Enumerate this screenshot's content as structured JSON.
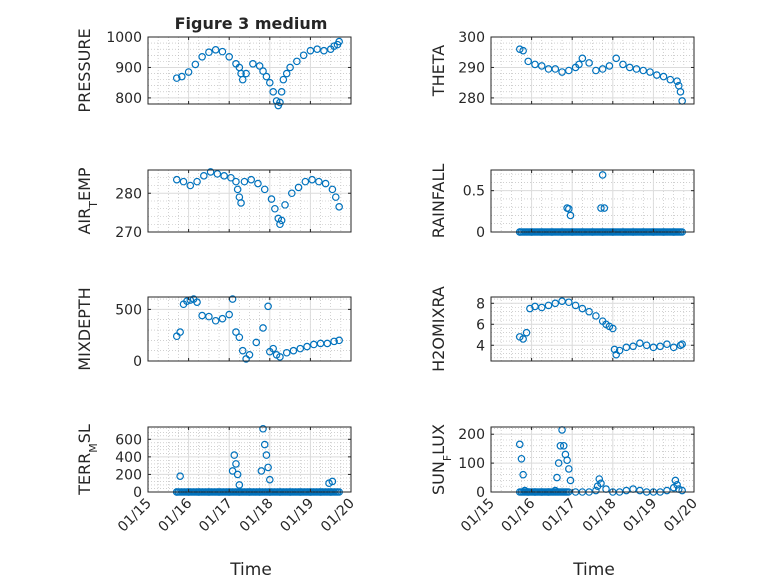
{
  "title": "Figure 3 medium",
  "xlabel": "Time",
  "x_ticks": [
    "01/15",
    "01/16",
    "01/17",
    "01/18",
    "01/19",
    "01/20"
  ],
  "colors": {
    "marker": "#0072BD",
    "axis": "#262626",
    "grid": "#b5b5b5",
    "background": "#ffffff"
  },
  "chart_data": [
    {
      "type": "scatter",
      "ylabel": "PRESSURE",
      "ylabel_parts": [
        {
          "t": "PRESSURE"
        }
      ],
      "ylim": [
        780,
        1000
      ],
      "yticks": [
        800,
        900,
        1000
      ],
      "x": [
        "01/15 17:00",
        "01/15 20:00",
        "01/16 00:00",
        "01/16 04:00",
        "01/16 08:00",
        "01/16 12:00",
        "01/16 16:00",
        "01/16 20:00",
        "01/17 00:00",
        "01/17 04:00",
        "01/17 06:00",
        "01/17 07:00",
        "01/17 08:00",
        "01/17 10:00",
        "01/17 14:00",
        "01/17 18:00",
        "01/17 20:00",
        "01/17 22:00",
        "01/18 00:00",
        "01/18 02:00",
        "01/18 04:00",
        "01/18 05:00",
        "01/18 06:00",
        "01/18 07:00",
        "01/18 08:00",
        "01/18 10:00",
        "01/18 12:00",
        "01/18 16:00",
        "01/18 20:00",
        "01/19 00:00",
        "01/19 04:00",
        "01/19 08:00",
        "01/19 12:00",
        "01/19 14:00",
        "01/19 16:00",
        "01/19 17:00"
      ],
      "y": [
        865,
        870,
        885,
        910,
        935,
        950,
        958,
        952,
        935,
        912,
        900,
        880,
        860,
        880,
        912,
        905,
        888,
        870,
        850,
        820,
        790,
        775,
        785,
        820,
        860,
        880,
        900,
        920,
        940,
        955,
        960,
        955,
        960,
        970,
        975,
        985
      ]
    },
    {
      "type": "scatter",
      "ylabel": "THETA",
      "ylabel_parts": [
        {
          "t": "THETA"
        }
      ],
      "ylim": [
        278,
        300
      ],
      "yticks": [
        280,
        290,
        300
      ],
      "x": [
        "01/15 17:00",
        "01/15 19:00",
        "01/15 22:00",
        "01/16 02:00",
        "01/16 06:00",
        "01/16 10:00",
        "01/16 14:00",
        "01/16 18:00",
        "01/16 22:00",
        "01/17 02:00",
        "01/17 04:00",
        "01/17 06:00",
        "01/17 10:00",
        "01/17 14:00",
        "01/17 18:00",
        "01/17 22:00",
        "01/18 02:00",
        "01/18 06:00",
        "01/18 10:00",
        "01/18 14:00",
        "01/18 18:00",
        "01/18 22:00",
        "01/19 02:00",
        "01/19 06:00",
        "01/19 10:00",
        "01/19 14:00",
        "01/19 15:00",
        "01/19 16:00",
        "01/19 17:00"
      ],
      "y": [
        296,
        295.5,
        292,
        291,
        290.5,
        289.5,
        289.5,
        288.5,
        289,
        290,
        291,
        293,
        291.5,
        289,
        289.5,
        290.5,
        293,
        291,
        290,
        289.5,
        289,
        288.5,
        287.5,
        287,
        286,
        285.5,
        284,
        282,
        279
      ]
    },
    {
      "type": "scatter",
      "ylabel": "AIR_TEMP",
      "ylabel_parts": [
        {
          "t": "AIR"
        },
        {
          "t": "T",
          "sub": true
        },
        {
          "t": "EMP"
        }
      ],
      "ylim": [
        270,
        286
      ],
      "yticks": [
        270,
        280
      ],
      "x": [
        "01/15 17:00",
        "01/15 21:00",
        "01/16 01:00",
        "01/16 05:00",
        "01/16 09:00",
        "01/16 13:00",
        "01/16 17:00",
        "01/16 21:00",
        "01/17 01:00",
        "01/17 04:00",
        "01/17 05:00",
        "01/17 06:00",
        "01/17 07:00",
        "01/17 09:00",
        "01/17 13:00",
        "01/17 17:00",
        "01/17 21:00",
        "01/18 01:00",
        "01/18 03:00",
        "01/18 05:00",
        "01/18 06:00",
        "01/18 07:00",
        "01/18 09:00",
        "01/18 13:00",
        "01/18 17:00",
        "01/18 21:00",
        "01/19 01:00",
        "01/19 05:00",
        "01/19 09:00",
        "01/19 13:00",
        "01/19 15:00",
        "01/19 17:00"
      ],
      "y": [
        283.5,
        283,
        282,
        283,
        284.5,
        285.5,
        285,
        284.5,
        284,
        283,
        281,
        279,
        277.5,
        283,
        283.5,
        282.5,
        281,
        278.5,
        276,
        273.5,
        272,
        273,
        277,
        280,
        281.5,
        283,
        283.5,
        283,
        282.5,
        281,
        279,
        276.5
      ]
    },
    {
      "type": "scatter",
      "ylabel": "RAINFALL",
      "ylabel_parts": [
        {
          "t": "RAINFALL"
        }
      ],
      "ylim": [
        0,
        0.75
      ],
      "yticks": [
        0,
        0.5
      ],
      "x": [
        "01/15 17:00",
        "01/16 00:00",
        "01/16 06:00",
        "01/16 12:00",
        "01/16 18:00",
        "01/17 00:00",
        "01/17 06:00",
        "01/17 12:00",
        "01/17 18:00",
        "01/18 00:00",
        "01/18 06:00",
        "01/18 12:00",
        "01/18 18:00",
        "01/19 00:00",
        "01/19 06:00",
        "01/19 12:00",
        "01/19 17:00",
        "01/16 21:00",
        "01/16 22:00",
        "01/16 23:00",
        "01/17 17:00",
        "01/17 18:00",
        "01/17 19:00"
      ],
      "y": [
        0,
        0,
        0,
        0,
        0,
        0,
        0,
        0,
        0,
        0,
        0,
        0,
        0,
        0,
        0,
        0,
        0,
        0.29,
        0.28,
        0.2,
        0.29,
        0.69,
        0.29
      ]
    },
    {
      "type": "scatter",
      "ylabel": "MIXDEPTH",
      "ylabel_parts": [
        {
          "t": "MIXDEPTH"
        }
      ],
      "ylim": [
        0,
        620
      ],
      "yticks": [
        0,
        500
      ],
      "x": [
        "01/15 17:00",
        "01/15 19:00",
        "01/15 21:00",
        "01/15 23:00",
        "01/16 01:00",
        "01/16 03:00",
        "01/16 05:00",
        "01/16 08:00",
        "01/16 12:00",
        "01/16 16:00",
        "01/16 20:00",
        "01/17 00:00",
        "01/17 02:00",
        "01/17 04:00",
        "01/17 06:00",
        "01/17 08:00",
        "01/17 10:00",
        "01/17 12:00",
        "01/17 16:00",
        "01/17 20:00",
        "01/17 23:00",
        "01/18 00:00",
        "01/18 02:00",
        "01/18 04:00",
        "01/18 06:00",
        "01/18 10:00",
        "01/18 14:00",
        "01/18 18:00",
        "01/18 22:00",
        "01/19 02:00",
        "01/19 06:00",
        "01/19 10:00",
        "01/19 14:00",
        "01/19 17:00"
      ],
      "y": [
        240,
        280,
        550,
        580,
        590,
        600,
        570,
        440,
        430,
        390,
        410,
        450,
        600,
        280,
        230,
        100,
        20,
        60,
        180,
        320,
        530,
        90,
        120,
        60,
        40,
        80,
        100,
        120,
        140,
        160,
        170,
        170,
        190,
        200
      ]
    },
    {
      "type": "scatter",
      "ylabel": "H2OMIXRA",
      "ylabel_parts": [
        {
          "t": "H2OMIXRA"
        }
      ],
      "ylim": [
        2.5,
        8.6
      ],
      "yticks": [
        4,
        6,
        8
      ],
      "x": [
        "01/15 17:00",
        "01/15 19:00",
        "01/15 21:00",
        "01/15 23:00",
        "01/16 02:00",
        "01/16 06:00",
        "01/16 10:00",
        "01/16 14:00",
        "01/16 18:00",
        "01/16 22:00",
        "01/17 02:00",
        "01/17 06:00",
        "01/17 10:00",
        "01/17 14:00",
        "01/17 18:00",
        "01/17 20:00",
        "01/17 22:00",
        "01/18 00:00",
        "01/18 01:00",
        "01/18 02:00",
        "01/18 04:00",
        "01/18 08:00",
        "01/18 12:00",
        "01/18 16:00",
        "01/18 20:00",
        "01/19 00:00",
        "01/19 04:00",
        "01/19 08:00",
        "01/19 12:00",
        "01/19 16:00",
        "01/19 17:00"
      ],
      "y": [
        4.8,
        4.6,
        5.2,
        7.5,
        7.7,
        7.6,
        7.8,
        8.0,
        8.2,
        8.1,
        7.8,
        7.5,
        7.2,
        6.8,
        6.3,
        6.0,
        5.8,
        5.6,
        3.6,
        3.1,
        3.5,
        3.8,
        3.9,
        4.2,
        4.0,
        3.8,
        3.9,
        4.1,
        3.8,
        4.0,
        4.1
      ]
    },
    {
      "type": "scatter",
      "ylabel": "TERR_MSL",
      "ylabel_parts": [
        {
          "t": "TERR"
        },
        {
          "t": "M",
          "sub": true
        },
        {
          "t": "SL"
        }
      ],
      "ylim": [
        0,
        740
      ],
      "yticks": [
        0,
        200,
        400,
        600
      ],
      "x": [
        "01/15 17:00",
        "01/16 00:00",
        "01/16 06:00",
        "01/16 12:00",
        "01/16 18:00",
        "01/17 00:00",
        "01/17 06:00",
        "01/17 12:00",
        "01/17 18:00",
        "01/18 00:00",
        "01/18 06:00",
        "01/18 12:00",
        "01/18 18:00",
        "01/19 00:00",
        "01/19 06:00",
        "01/19 12:00",
        "01/19 17:00",
        "01/15 19:00",
        "01/17 02:00",
        "01/17 03:00",
        "01/17 04:00",
        "01/17 05:00",
        "01/17 06:00",
        "01/17 19:00",
        "01/17 20:00",
        "01/17 21:00",
        "01/17 22:00",
        "01/17 23:00",
        "01/18 00:00",
        "01/19 11:00",
        "01/19 13:00"
      ],
      "y": [
        0,
        0,
        0,
        0,
        0,
        0,
        0,
        0,
        0,
        0,
        0,
        0,
        0,
        0,
        0,
        0,
        0,
        180,
        240,
        420,
        320,
        200,
        80,
        240,
        720,
        540,
        420,
        280,
        140,
        100,
        120
      ]
    },
    {
      "type": "scatter",
      "ylabel": "SUN_FLUX",
      "ylabel_parts": [
        {
          "t": "SUN"
        },
        {
          "t": "F",
          "sub": true
        },
        {
          "t": "LUX"
        }
      ],
      "ylim": [
        0,
        225
      ],
      "yticks": [
        0,
        100,
        200
      ],
      "x": [
        "01/15 17:00",
        "01/15 18:00",
        "01/15 19:00",
        "01/15 20:00",
        "01/15 22:00",
        "01/16 02:00",
        "01/16 06:00",
        "01/16 10:00",
        "01/16 14:00",
        "01/16 15:00",
        "01/16 16:00",
        "01/16 17:00",
        "01/16 18:00",
        "01/16 19:00",
        "01/16 20:00",
        "01/16 21:00",
        "01/16 22:00",
        "01/16 23:00",
        "01/17 02:00",
        "01/17 06:00",
        "01/17 10:00",
        "01/17 14:00",
        "01/17 15:00",
        "01/17 16:00",
        "01/17 17:00",
        "01/17 20:00",
        "01/18 00:00",
        "01/18 04:00",
        "01/18 08:00",
        "01/18 12:00",
        "01/18 16:00",
        "01/18 20:00",
        "01/19 00:00",
        "01/19 04:00",
        "01/19 08:00",
        "01/19 12:00",
        "01/19 13:00",
        "01/19 14:00",
        "01/19 15:00",
        "01/19 17:00"
      ],
      "y": [
        165,
        115,
        60,
        5,
        0,
        0,
        0,
        0,
        5,
        50,
        100,
        160,
        215,
        160,
        130,
        110,
        80,
        40,
        0,
        0,
        0,
        5,
        20,
        45,
        30,
        10,
        0,
        0,
        5,
        10,
        5,
        0,
        0,
        0,
        5,
        15,
        40,
        25,
        10,
        5
      ]
    }
  ]
}
